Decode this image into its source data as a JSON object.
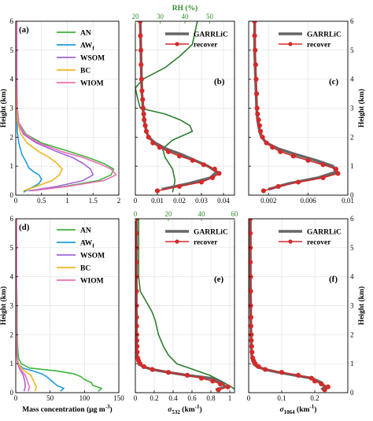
{
  "chart_data": [
    {
      "id": "a",
      "panel_label": "(a)",
      "type": "line",
      "xlim": [
        0,
        2
      ],
      "ylim": [
        0,
        6
      ],
      "xticks": [
        0,
        0.5,
        1,
        1.5,
        2
      ],
      "xticklabels": [
        "0",
        "0.5",
        "1",
        "1.5",
        "2"
      ],
      "yticks": [
        0,
        1,
        2,
        3,
        4,
        5,
        6
      ],
      "xlabel": "",
      "ylabel": "Height (km)",
      "legend_position": "top-right",
      "series": [
        {
          "name": "AN",
          "name_sub": "",
          "color": "#3cb63c",
          "y": [
            0.15,
            0.3,
            0.5,
            0.7,
            0.9,
            1.1,
            1.3,
            1.5,
            1.8,
            2.1,
            2.5,
            3,
            4,
            5,
            6
          ],
          "x": [
            0.3,
            0.95,
            1.6,
            1.85,
            1.9,
            1.7,
            1.4,
            1.05,
            0.5,
            0.2,
            0.06,
            0.03,
            0.02,
            0.02,
            0.02
          ]
        },
        {
          "name": "AW",
          "name_sub": "f",
          "color": "#1e9be0",
          "y": [
            0.1,
            0.25,
            0.4,
            0.55,
            0.7,
            0.8,
            0.95,
            1.15,
            1.4,
            1.8,
            2.2,
            3,
            4,
            5,
            6
          ],
          "x": [
            0.15,
            0.3,
            0.45,
            0.5,
            0.45,
            0.35,
            0.25,
            0.2,
            0.12,
            0.06,
            0.03,
            0.02,
            0.01,
            0.01,
            0.01
          ]
        },
        {
          "name": "WSOM",
          "name_sub": "",
          "color": "#a064dc",
          "y": [
            0.15,
            0.3,
            0.5,
            0.7,
            0.9,
            1.1,
            1.3,
            1.5,
            1.8,
            2.1,
            2.5,
            3,
            4,
            5,
            6
          ],
          "x": [
            0.25,
            0.8,
            1.3,
            1.5,
            1.45,
            1.3,
            1.1,
            0.8,
            0.4,
            0.15,
            0.05,
            0.02,
            0.02,
            0.02,
            0.02
          ]
        },
        {
          "name": "BC",
          "name_sub": "",
          "color": "#f0b41e",
          "y": [
            0.15,
            0.3,
            0.5,
            0.7,
            0.9,
            1.1,
            1.3,
            1.5,
            1.8,
            2.1,
            2.5,
            3,
            4,
            5,
            6
          ],
          "x": [
            0.15,
            0.4,
            0.7,
            0.85,
            0.9,
            0.8,
            0.65,
            0.45,
            0.22,
            0.1,
            0.04,
            0.02,
            0.01,
            0.01,
            0.01
          ]
        },
        {
          "name": "WIOM",
          "name_sub": "",
          "color": "#ee6eb4",
          "y": [
            0.15,
            0.3,
            0.5,
            0.7,
            0.9,
            1.1,
            1.3,
            1.5,
            1.8,
            2.1,
            2.5,
            3,
            4,
            5,
            6
          ],
          "x": [
            0.3,
            1,
            1.7,
            1.95,
            1.85,
            1.6,
            1.3,
            0.9,
            0.45,
            0.18,
            0.06,
            0.03,
            0.02,
            0.02,
            0.02
          ]
        }
      ]
    },
    {
      "id": "b",
      "panel_label": "(b)",
      "type": "line",
      "xlim": [
        0,
        0.045
      ],
      "ylim": [
        0,
        6
      ],
      "xticks": [
        0,
        0.01,
        0.02,
        0.03,
        0.04
      ],
      "xticklabels": [
        "0",
        "0.01",
        "0.02",
        "0.03",
        "0.04"
      ],
      "yticks": [
        0,
        1,
        2,
        3,
        4,
        5,
        6
      ],
      "top_axis": {
        "label": "RH (%)",
        "xlim": [
          20,
          60
        ],
        "xticks": [
          20,
          30,
          40,
          50
        ],
        "xticklabels": [
          "20",
          "30",
          "40",
          "50"
        ]
      },
      "legend_position": "top-right",
      "series": [
        {
          "name": "GARRLiC",
          "color": "#666666",
          "y": [
            0.2,
            0.4,
            0.6,
            0.8,
            1,
            1.2,
            1.4,
            1.6,
            1.8,
            2,
            2.2,
            2.6,
            3,
            3.5,
            4,
            5,
            6
          ],
          "x": [
            0.012,
            0.024,
            0.034,
            0.037,
            0.033,
            0.027,
            0.021,
            0.014,
            0.009,
            0.006,
            0.005,
            0.004,
            0.0035,
            0.003,
            0.0028,
            0.0025,
            0.0022
          ]
        },
        {
          "name": "recover",
          "color": "#d42a2a",
          "marker": "circle",
          "y": [
            0.15,
            0.3,
            0.45,
            0.6,
            0.75,
            0.9,
            1.05,
            1.2,
            1.35,
            1.5,
            1.65,
            1.8,
            2,
            2.2,
            2.4,
            2.6,
            2.8,
            3,
            3.3,
            3.6,
            4,
            4.5,
            5,
            5.5,
            6
          ],
          "x": [
            0.01,
            0.02,
            0.03,
            0.035,
            0.038,
            0.036,
            0.031,
            0.026,
            0.02,
            0.015,
            0.011,
            0.008,
            0.006,
            0.005,
            0.0045,
            0.004,
            0.0038,
            0.0035,
            0.0033,
            0.003,
            0.0028,
            0.0026,
            0.0025,
            0.0023,
            0.0022
          ]
        },
        {
          "name": "RH",
          "color": "#2e7d2e",
          "axis": "top",
          "y": [
            0.1,
            0.5,
            0.9,
            1.3,
            1.6,
            1.9,
            2.2,
            2.4,
            2.6,
            2.8,
            3,
            3.3,
            3.7,
            4,
            4.4,
            4.8,
            5.2,
            5.6,
            6
          ],
          "x": [
            35,
            36,
            35,
            32,
            31,
            35,
            43,
            42,
            38,
            32,
            22,
            21,
            20,
            23,
            32,
            38,
            43,
            44,
            45
          ]
        }
      ]
    },
    {
      "id": "c",
      "panel_label": "(c)",
      "type": "line",
      "xlim": [
        0,
        0.01
      ],
      "ylim": [
        0,
        6
      ],
      "xticks": [
        0.002,
        0.006,
        0.01
      ],
      "xticklabels": [
        "0.002",
        "0.006",
        "0.01"
      ],
      "yticks": [
        0,
        1,
        2,
        3,
        4,
        5,
        6
      ],
      "ylabel": "Height (km)",
      "legend_position": "top-right",
      "series": [
        {
          "name": "GARRLiC",
          "color": "#666666",
          "y": [
            0.2,
            0.4,
            0.6,
            0.8,
            1,
            1.2,
            1.4,
            1.6,
            1.8,
            2,
            2.2,
            2.6,
            3,
            4,
            5,
            6
          ],
          "x": [
            0.002,
            0.004,
            0.007,
            0.0088,
            0.0085,
            0.0068,
            0.0048,
            0.003,
            0.0018,
            0.0013,
            0.0011,
            0.0009,
            0.0008,
            0.0007,
            0.0006,
            0.0006
          ]
        },
        {
          "name": "recover",
          "color": "#d42a2a",
          "marker": "circle",
          "y": [
            0.15,
            0.3,
            0.45,
            0.6,
            0.75,
            0.9,
            1.05,
            1.2,
            1.35,
            1.5,
            1.65,
            1.8,
            2,
            2.2,
            2.4,
            2.6,
            2.8,
            3,
            3.5,
            4,
            4.5,
            5,
            5.5,
            6
          ],
          "x": [
            0.0015,
            0.003,
            0.005,
            0.0075,
            0.009,
            0.0088,
            0.0075,
            0.006,
            0.0045,
            0.0032,
            0.0024,
            0.0018,
            0.0014,
            0.0012,
            0.0011,
            0.001,
            0.0009,
            0.00085,
            0.0008,
            0.00075,
            0.0007,
            0.00065,
            0.0006,
            0.0006
          ]
        }
      ]
    },
    {
      "id": "d",
      "panel_label": "(d)",
      "type": "line",
      "xlim": [
        0,
        150
      ],
      "ylim": [
        0,
        6
      ],
      "xticks": [
        0,
        50,
        100,
        150
      ],
      "xticklabels": [
        "0",
        "50",
        "100",
        "150"
      ],
      "yticks": [
        0,
        1,
        2,
        3,
        4,
        5,
        6
      ],
      "xlabel": "Mass concentration (μg m",
      "xlabel_sup": "-3",
      "xlabel_end": ")",
      "ylabel": "Height (km)",
      "legend_position": "top-right",
      "series": [
        {
          "name": "AN",
          "name_sub": "",
          "color": "#3cb63c",
          "y": [
            0.05,
            0.15,
            0.25,
            0.35,
            0.45,
            0.55,
            0.65,
            0.75,
            0.85,
            1,
            1.2,
            1.5,
            2,
            3,
            4,
            5,
            6
          ],
          "x": [
            120,
            125,
            112,
            110,
            100,
            95,
            85,
            60,
            20,
            8,
            4,
            3,
            2,
            2,
            1,
            1,
            1
          ]
        },
        {
          "name": "AW",
          "name_sub": "f",
          "color": "#1e9be0",
          "y": [
            0.05,
            0.15,
            0.25,
            0.35,
            0.45,
            0.55,
            0.65,
            0.75,
            0.85,
            1,
            1.2,
            1.5,
            2,
            3,
            4,
            5,
            6
          ],
          "x": [
            65,
            70,
            60,
            55,
            50,
            45,
            38,
            25,
            10,
            4,
            2,
            1,
            1,
            1,
            1,
            1,
            1
          ]
        },
        {
          "name": "WSOM",
          "name_sub": "",
          "color": "#a064dc",
          "y": [
            0.05,
            0.2,
            0.4,
            0.6,
            0.8,
            1,
            1.2,
            1.5,
            2,
            3,
            4,
            5,
            6
          ],
          "x": [
            12,
            14,
            13,
            11,
            6,
            3,
            2,
            2,
            1,
            1,
            1,
            1,
            1
          ]
        },
        {
          "name": "BC",
          "name_sub": "",
          "color": "#f0b41e",
          "y": [
            0.05,
            0.2,
            0.4,
            0.6,
            0.8,
            1,
            1.2,
            1.5,
            2,
            3,
            4,
            5,
            6
          ],
          "x": [
            28,
            30,
            26,
            22,
            10,
            4,
            2,
            2,
            1,
            1,
            1,
            1,
            1
          ]
        },
        {
          "name": "WIOM",
          "name_sub": "",
          "color": "#ee6eb4",
          "y": [
            0.05,
            0.2,
            0.4,
            0.6,
            0.8,
            1,
            1.2,
            1.5,
            2,
            3,
            4,
            5,
            6
          ],
          "x": [
            18,
            20,
            17,
            14,
            7,
            3,
            2,
            2,
            1,
            1,
            1,
            1,
            1
          ]
        }
      ]
    },
    {
      "id": "e",
      "panel_label": "(e)",
      "type": "line",
      "xlim": [
        0,
        1.05
      ],
      "ylim": [
        0,
        6
      ],
      "xticks": [
        0,
        0.2,
        0.4,
        0.6,
        0.8,
        1
      ],
      "xticklabels": [
        "0",
        "0.2",
        "0.4",
        "0.6",
        "0.8",
        "1"
      ],
      "yticks": [
        0,
        1,
        2,
        3,
        4,
        5,
        6
      ],
      "xlabel": "σ",
      "xlabel_sub": "532",
      "xlabel_unit": " (km",
      "xlabel_sup": "-1",
      "xlabel_end": ")",
      "top_axis": {
        "label": "",
        "xlim": [
          0,
          60
        ],
        "xticks": [
          0,
          20,
          40,
          60
        ],
        "xticklabels": [
          "0",
          "20",
          "40",
          "60"
        ]
      },
      "legend_position": "top-right",
      "series": [
        {
          "name": "GARRLiC",
          "color": "#666666",
          "y": [
            0.1,
            0.2,
            0.35,
            0.5,
            0.6,
            0.7,
            0.8,
            0.9,
            1,
            1.2,
            1.5,
            2,
            3,
            4,
            5,
            6
          ],
          "x": [
            0.85,
            0.95,
            0.92,
            0.8,
            0.55,
            0.35,
            0.18,
            0.08,
            0.04,
            0.02,
            0.015,
            0.012,
            0.01,
            0.01,
            0.01,
            0.01
          ]
        },
        {
          "name": "recover",
          "color": "#d42a2a",
          "marker": "circle",
          "y": [
            0.1,
            0.2,
            0.3,
            0.4,
            0.5,
            0.6,
            0.7,
            0.8,
            0.9,
            1,
            1.1,
            1.2,
            1.4,
            1.6,
            1.8,
            2,
            2.3,
            2.6,
            3,
            3.5,
            4,
            4.5,
            5,
            5.5,
            6
          ],
          "x": [
            0.88,
            0.98,
            0.9,
            0.82,
            0.7,
            0.55,
            0.35,
            0.18,
            0.09,
            0.05,
            0.035,
            0.025,
            0.02,
            0.018,
            0.016,
            0.015,
            0.014,
            0.013,
            0.012,
            0.012,
            0.011,
            0.011,
            0.01,
            0.01,
            0.01
          ]
        },
        {
          "name": "RH",
          "color": "#2e7d2e",
          "axis": "top",
          "y": [
            0.05,
            0.2,
            0.4,
            0.6,
            0.8,
            1,
            1.3,
            1.6,
            2,
            2.5,
            2.8,
            3,
            3.5,
            4,
            5,
            6
          ],
          "x": [
            62,
            58,
            52,
            45,
            35,
            25,
            20,
            17,
            14,
            12,
            10,
            8,
            3,
            2,
            2,
            2
          ]
        }
      ]
    },
    {
      "id": "f",
      "panel_label": "(f)",
      "type": "line",
      "xlim": [
        0,
        0.3
      ],
      "ylim": [
        0,
        6
      ],
      "xticks": [
        0,
        0.1,
        0.2
      ],
      "xticklabels": [
        "0",
        "0.1",
        "0.2"
      ],
      "yticks": [
        0,
        1,
        2,
        3,
        4,
        5,
        6
      ],
      "xlabel": "σ",
      "xlabel_sub": "1064",
      "xlabel_unit": " (km",
      "xlabel_sup": "-1",
      "xlabel_end": ")",
      "ylabel": "Height (km)",
      "legend_position": "top-right",
      "series": [
        {
          "name": "GARRLiC",
          "color": "#666666",
          "y": [
            0.1,
            0.2,
            0.35,
            0.5,
            0.6,
            0.7,
            0.8,
            0.9,
            1,
            1.2,
            1.5,
            2,
            3,
            4,
            5,
            6
          ],
          "x": [
            0.22,
            0.23,
            0.22,
            0.19,
            0.14,
            0.09,
            0.05,
            0.025,
            0.015,
            0.01,
            0.008,
            0.007,
            0.006,
            0.005,
            0.005,
            0.005
          ]
        },
        {
          "name": "recover",
          "color": "#d42a2a",
          "marker": "circle",
          "y": [
            0.1,
            0.2,
            0.3,
            0.4,
            0.5,
            0.6,
            0.7,
            0.8,
            0.9,
            1,
            1.1,
            1.2,
            1.4,
            1.6,
            1.8,
            2,
            2.3,
            2.6,
            3,
            3.5,
            4,
            4.5,
            5,
            5.5,
            6
          ],
          "x": [
            0.23,
            0.24,
            0.22,
            0.2,
            0.19,
            0.15,
            0.1,
            0.05,
            0.03,
            0.02,
            0.015,
            0.012,
            0.01,
            0.009,
            0.008,
            0.008,
            0.007,
            0.007,
            0.006,
            0.006,
            0.006,
            0.005,
            0.005,
            0.005,
            0.005
          ]
        }
      ]
    }
  ]
}
